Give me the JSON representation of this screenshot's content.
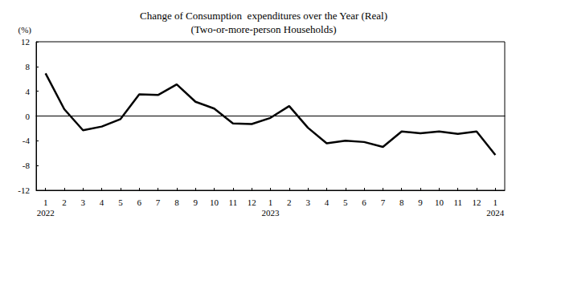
{
  "chart_data": {
    "type": "line",
    "title": "Change of Consumption  expenditures over the Year (Real)",
    "subtitle": "(Two-or-more-person Households)",
    "y_label": "(%)",
    "categories": [
      "1\n2022",
      "2",
      "3",
      "4",
      "5",
      "6",
      "7",
      "8",
      "9",
      "10",
      "11",
      "12",
      "1\n2023",
      "2",
      "3",
      "4",
      "5",
      "6",
      "7",
      "8",
      "9",
      "10",
      "11",
      "12",
      "1\n2024"
    ],
    "values": [
      6.9,
      1.1,
      -2.3,
      -1.7,
      -0.5,
      3.5,
      3.4,
      5.1,
      2.3,
      1.2,
      -1.2,
      -1.3,
      -0.3,
      1.6,
      -1.9,
      -4.4,
      -4.0,
      -4.2,
      -5.0,
      -2.5,
      -2.8,
      -2.5,
      -2.9,
      -2.5,
      -6.3
    ],
    "color": "#000000",
    "ylim": [
      -12,
      12
    ],
    "yticks": [
      -12,
      -8,
      -4,
      0,
      4,
      8,
      12
    ],
    "grid": false
  }
}
